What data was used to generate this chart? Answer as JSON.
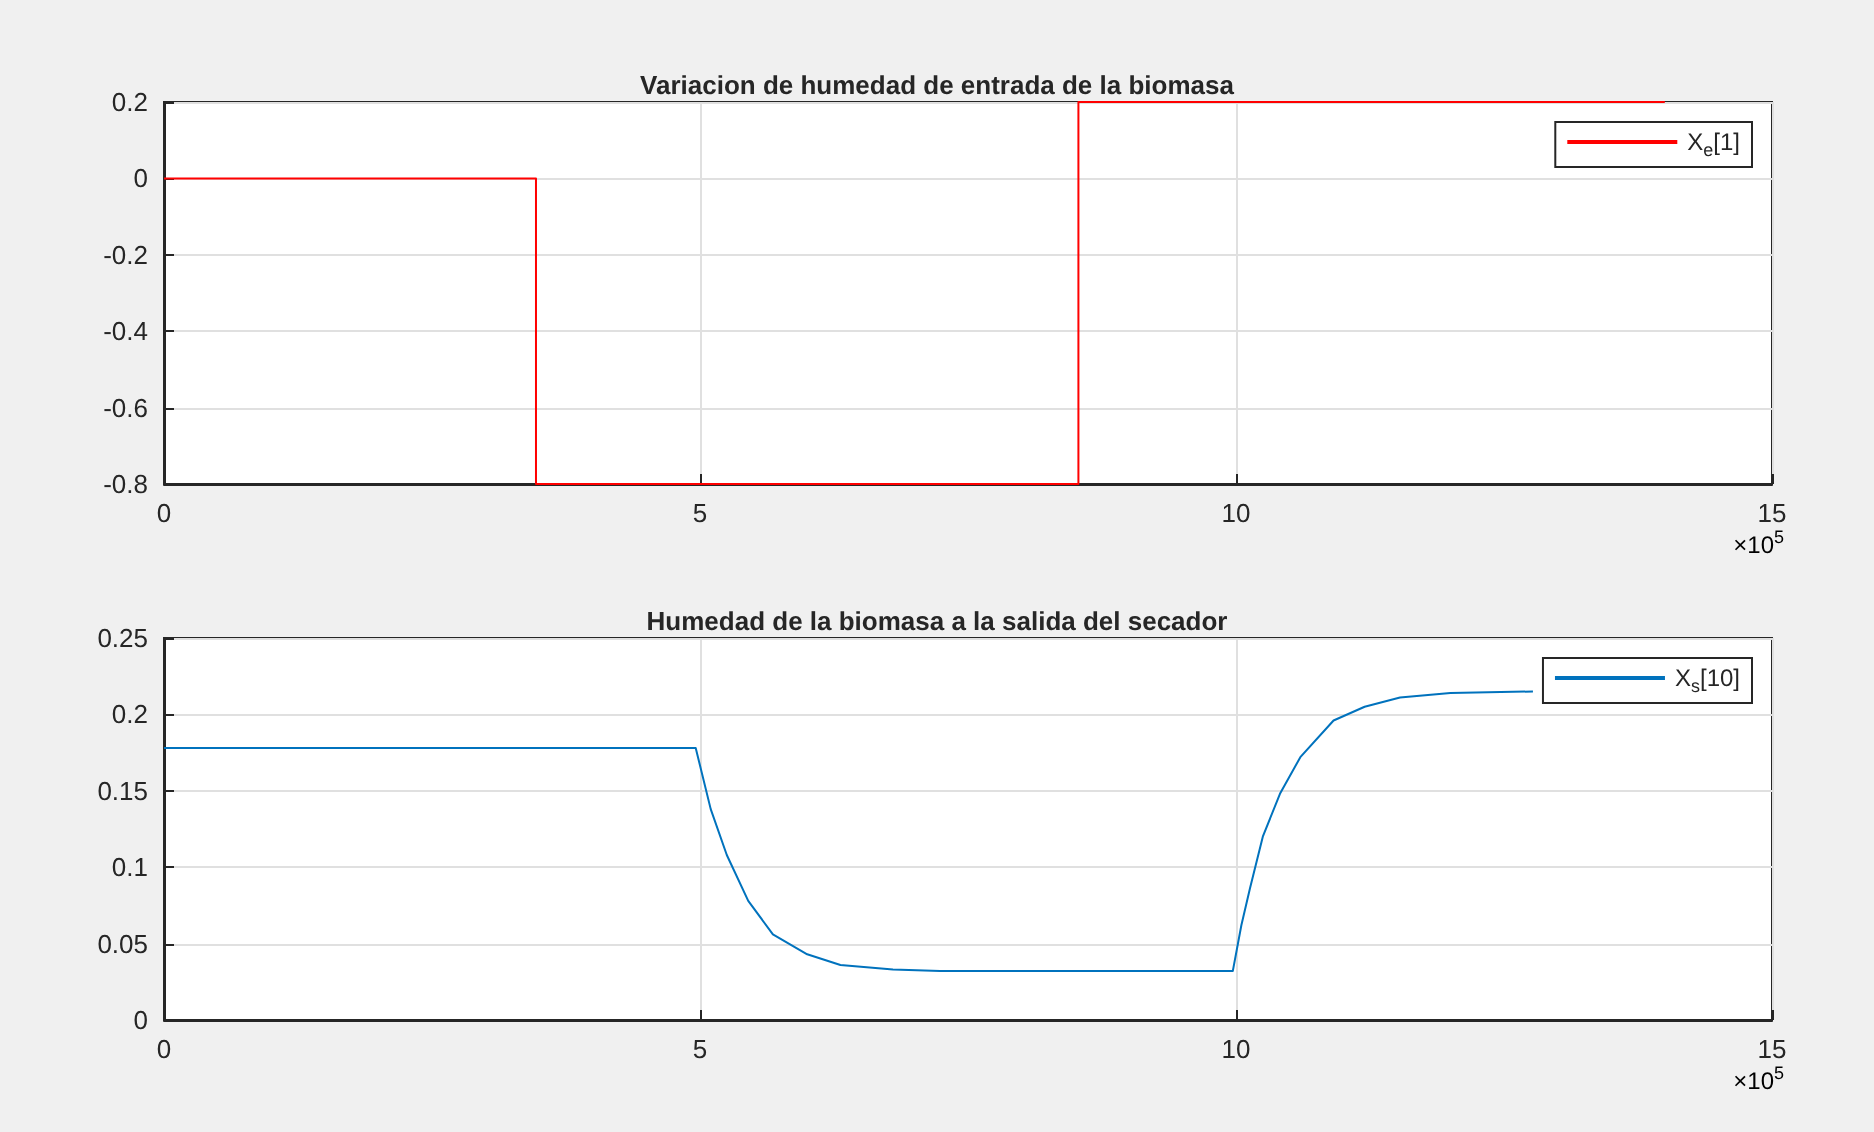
{
  "chart_data": [
    {
      "type": "step",
      "title": "Variacion de humedad de entrada de la biomasa",
      "x": [
        0,
        3.47,
        8.53,
        14
      ],
      "series": [
        {
          "name": "X$_{e}$[1]",
          "color": "#ff0000",
          "values": [
            0,
            -0.8,
            0.2,
            0.2
          ]
        }
      ],
      "xlim": [
        0,
        15
      ],
      "xticks": [
        0,
        5,
        10,
        15
      ],
      "ylim": [
        -0.8,
        0.2
      ],
      "yticks": [
        -0.8,
        -0.6,
        -0.4,
        -0.2,
        0,
        0.2
      ],
      "grid": true,
      "legend": "top right",
      "annotations": [
        "×10$^{5}$"
      ]
    },
    {
      "type": "line",
      "title": "Humedad de la biomasa a la salida del secador",
      "x": [
        0,
        4.96,
        5.1,
        5.25,
        5.45,
        5.68,
        6.0,
        6.31,
        6.8,
        7.24,
        8.5,
        9.97,
        10.05,
        10.13,
        10.25,
        10.41,
        10.6,
        10.91,
        11.2,
        11.53,
        12.0,
        12.77
      ],
      "series": [
        {
          "name": "X$_{s}$[10]",
          "color": "#0072bd",
          "values": [
            0.178,
            0.178,
            0.138,
            0.108,
            0.078,
            0.056,
            0.043,
            0.036,
            0.033,
            0.032,
            0.032,
            0.032,
            0.062,
            0.086,
            0.12,
            0.148,
            0.172,
            0.196,
            0.205,
            0.211,
            0.214,
            0.215
          ]
        }
      ],
      "xlim": [
        0,
        15
      ],
      "xticks": [
        0,
        5,
        10,
        15
      ],
      "ylim": [
        0,
        0.25
      ],
      "yticks": [
        0,
        0.05,
        0.1,
        0.15,
        0.2,
        0.25
      ],
      "grid": true,
      "legend": "top right",
      "annotations": [
        "×10$^{5}$"
      ]
    }
  ]
}
